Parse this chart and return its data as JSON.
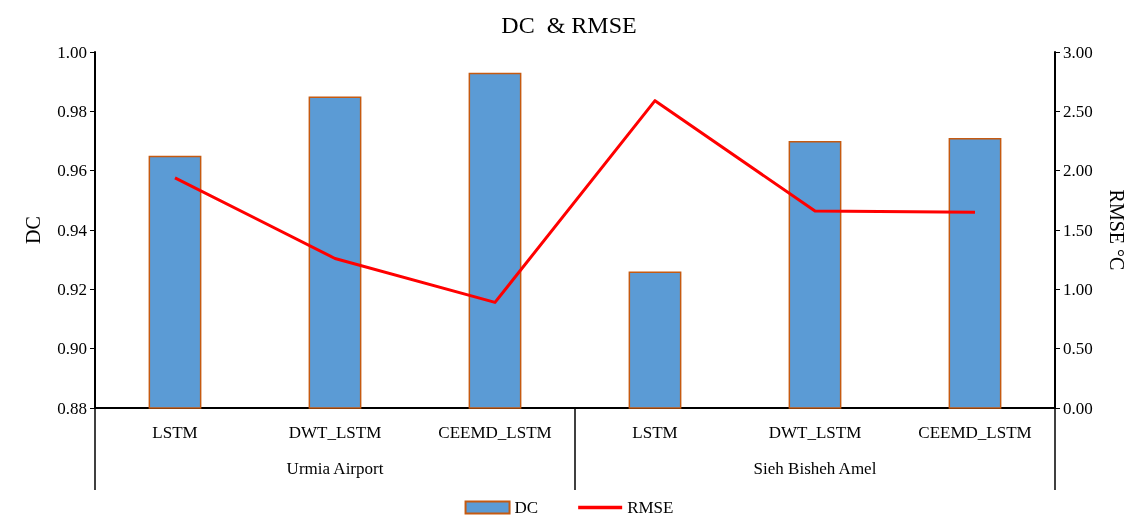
{
  "chart_data": {
    "type": "bar",
    "title": "DC  & RMSE",
    "ylabel": "DC",
    "y2label": "RMSE °C",
    "categories": [
      "LSTM",
      "DWT_LSTM",
      "CEEMD_LSTM",
      "LSTM",
      "DWT_LSTM",
      "CEEMD_LSTM"
    ],
    "series": [
      {
        "name": "DC",
        "color": "#5b9bd5",
        "values": [
          0.965,
          0.985,
          0.993,
          0.926,
          0.97,
          0.971
        ]
      },
      {
        "name": "RMSE",
        "type": "line",
        "axis": "y2",
        "color": "#ff0000",
        "values": [
          1.94,
          1.26,
          0.89,
          2.59,
          1.66,
          1.65
        ]
      }
    ],
    "ylim": [
      0.88,
      1.0
    ],
    "yticks": [
      {
        "value": 0.88,
        "label": "0.88"
      },
      {
        "value": 0.9,
        "label": "0.90"
      },
      {
        "value": 0.92,
        "label": "0.92"
      },
      {
        "value": 0.94,
        "label": "0.94"
      },
      {
        "value": 0.96,
        "label": "0.96"
      },
      {
        "value": 0.98,
        "label": "0.98"
      },
      {
        "value": 1.0,
        "label": "1.00"
      }
    ],
    "y2lim": [
      0,
      3
    ],
    "y2ticks": [
      {
        "value": 0,
        "label": "0.00"
      },
      {
        "value": 0.5,
        "label": "0.50"
      },
      {
        "value": 1,
        "label": "1.00"
      },
      {
        "value": 1.5,
        "label": "1.50"
      },
      {
        "value": 2,
        "label": "2.00"
      },
      {
        "value": 2.5,
        "label": "2.50"
      },
      {
        "value": 3,
        "label": "3.00"
      }
    ],
    "annotations": [
      "Urmia Airport",
      "Sieh Bisheh Amel"
    ],
    "grid": false,
    "legend": "bottom",
    "marker": "none"
  }
}
